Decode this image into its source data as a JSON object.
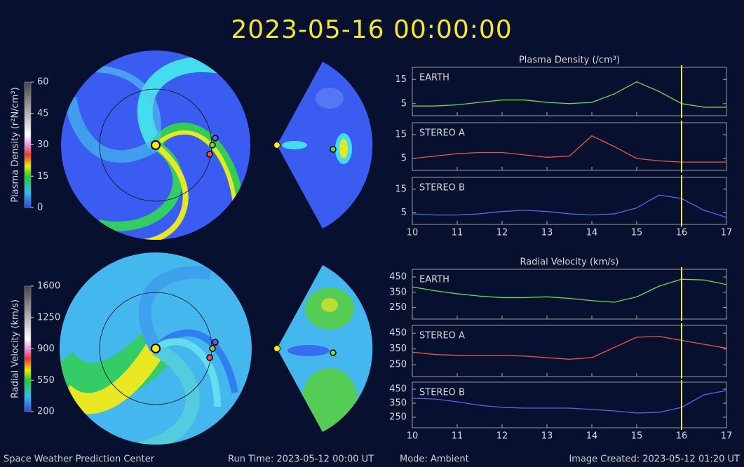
{
  "header": {
    "timestamp": "2023-05-16  00:00:00"
  },
  "footer": {
    "left": "Space Weather Prediction Center",
    "run_time": "Run Time: 2023-05-12 00:00 UT",
    "mode": "Mode: Ambient",
    "created": "Image Created: 2023-05-12 01:20 UT"
  },
  "colorbars": [
    {
      "label": "Plasma Density (r²N/cm³)",
      "lim": [
        0,
        60
      ],
      "ticks": [
        0,
        15,
        30,
        45,
        60
      ]
    },
    {
      "label": "Radial Velocity (km/s)",
      "lim": [
        200,
        1600
      ],
      "ticks": [
        200,
        550,
        900,
        1250,
        1600
      ]
    }
  ],
  "chart_data": [
    {
      "type": "line",
      "title": "Plasma Density (/cm³)",
      "xlim": [
        10,
        17
      ],
      "ylim": [
        0,
        20
      ],
      "yticks": [
        5,
        15
      ],
      "vline": 16,
      "x": [
        10,
        10.5,
        11,
        11.5,
        12,
        12.5,
        13,
        13.5,
        14,
        14.5,
        15,
        15.5,
        16,
        16.5,
        17
      ],
      "series": [
        {
          "name": "EARTH",
          "color": "#66dd55",
          "values": [
            4,
            4,
            4.5,
            5.5,
            6.5,
            6.5,
            5.5,
            5,
            5.5,
            9,
            14,
            10,
            5,
            3.5,
            3.5
          ]
        }
      ]
    },
    {
      "type": "line",
      "xlim": [
        10,
        17
      ],
      "ylim": [
        0,
        20
      ],
      "yticks": [
        5,
        15
      ],
      "vline": 16,
      "x": [
        10,
        10.5,
        11,
        11.5,
        12,
        12.5,
        13,
        13.5,
        14,
        14.5,
        15,
        15.5,
        16,
        16.5,
        17
      ],
      "series": [
        {
          "name": "STEREO A",
          "color": "#ee5544",
          "values": [
            5,
            6,
            7,
            7.5,
            7.5,
            6.5,
            5.5,
            6,
            14.5,
            10,
            5,
            4,
            3.5,
            3.5,
            3.5
          ]
        }
      ]
    },
    {
      "type": "line",
      "xlim": [
        10,
        17
      ],
      "ylim": [
        0,
        20
      ],
      "yticks": [
        5,
        15
      ],
      "vline": 16,
      "xticks": [
        10,
        11,
        12,
        13,
        14,
        15,
        16,
        17
      ],
      "x": [
        10,
        10.5,
        11,
        11.5,
        12,
        12.5,
        13,
        13.5,
        14,
        14.5,
        15,
        15.5,
        16,
        16.5,
        17
      ],
      "series": [
        {
          "name": "STEREO B",
          "color": "#5566ee",
          "values": [
            4.5,
            4,
            4,
            4.5,
            5.5,
            6,
            5.5,
            4.5,
            4,
            4.5,
            7,
            12.5,
            11,
            6,
            3
          ]
        }
      ]
    },
    {
      "type": "line",
      "title": "Radial Velocity (km/s)",
      "xlim": [
        10,
        17
      ],
      "ylim": [
        175,
        500
      ],
      "yticks": [
        250,
        350,
        450
      ],
      "vline": 16,
      "x": [
        10,
        10.5,
        11,
        11.5,
        12,
        12.5,
        13,
        13.5,
        14,
        14.5,
        15,
        15.5,
        16,
        16.5,
        17
      ],
      "series": [
        {
          "name": "EARTH",
          "color": "#66dd55",
          "values": [
            385,
            360,
            340,
            325,
            315,
            315,
            320,
            310,
            295,
            285,
            320,
            390,
            435,
            430,
            400
          ]
        }
      ]
    },
    {
      "type": "line",
      "xlim": [
        10,
        17
      ],
      "ylim": [
        175,
        500
      ],
      "yticks": [
        250,
        350,
        450
      ],
      "vline": 16,
      "x": [
        10,
        10.5,
        11,
        11.5,
        12,
        12.5,
        13,
        13.5,
        14,
        14.5,
        15,
        15.5,
        16,
        16.5,
        17
      ],
      "series": [
        {
          "name": "STEREO A",
          "color": "#ee5544",
          "values": [
            330,
            315,
            310,
            310,
            310,
            305,
            295,
            285,
            295,
            360,
            425,
            430,
            405,
            380,
            355
          ]
        }
      ]
    },
    {
      "type": "line",
      "xlim": [
        10,
        17
      ],
      "ylim": [
        175,
        500
      ],
      "yticks": [
        250,
        350,
        450
      ],
      "vline": 16,
      "xticks": [
        10,
        11,
        12,
        13,
        14,
        15,
        16,
        17
      ],
      "x": [
        10,
        10.5,
        11,
        11.5,
        12,
        12.5,
        13,
        13.5,
        14,
        14.5,
        15,
        15.5,
        16,
        16.5,
        17
      ],
      "series": [
        {
          "name": "STEREO B",
          "color": "#5566ee",
          "values": [
            385,
            380,
            360,
            335,
            320,
            315,
            315,
            315,
            305,
            295,
            280,
            285,
            320,
            410,
            440
          ]
        }
      ]
    }
  ]
}
